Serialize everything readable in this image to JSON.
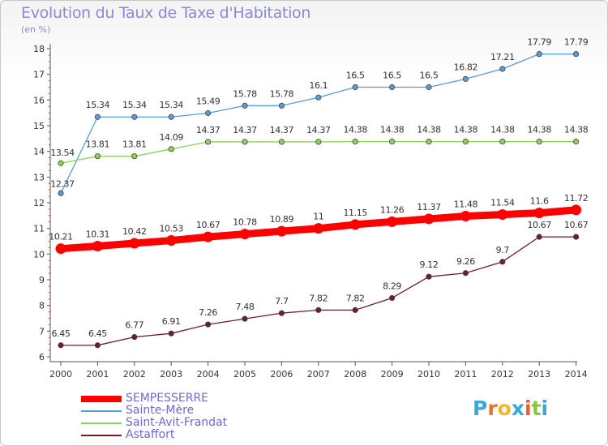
{
  "page": {
    "title": "Evolution du Taux de Taxe d'Habitation",
    "subtitle": "(en %)"
  },
  "logo": {
    "text": "Proxiti",
    "letters": [
      "P",
      "r",
      "o",
      "x",
      "i",
      "t",
      "i"
    ],
    "colors": [
      "#3aa8d8",
      "#e8762a",
      "#f0b82a",
      "#3aa8d8",
      "#f05a30",
      "#8cc63f",
      "#3aa8d8"
    ]
  },
  "chart_data": {
    "type": "line",
    "title": "Evolution du Taux de Taxe d'Habitation",
    "ylabel": "(en %)",
    "xlabel": "",
    "x": [
      "2000",
      "2001",
      "2002",
      "2003",
      "2004",
      "2005",
      "2006",
      "2007",
      "2008",
      "2009",
      "2010",
      "2011",
      "2012",
      "2013",
      "2014"
    ],
    "ylim": [
      6,
      18
    ],
    "yticks": [
      "6",
      "7",
      "8",
      "9",
      "10",
      "11",
      "12",
      "13",
      "14",
      "15",
      "16",
      "17",
      "18"
    ],
    "grid": false,
    "legend_position": "bottom-left",
    "series": [
      {
        "name": "SEMPESSERRE",
        "color": "#ff0000",
        "values": [
          10.21,
          10.31,
          10.42,
          10.53,
          10.67,
          10.78,
          10.89,
          11,
          11.15,
          11.26,
          11.37,
          11.48,
          11.54,
          11.6,
          11.72
        ],
        "labels": [
          "10.21",
          "10.31",
          "10.42",
          "10.53",
          "10.67",
          "10.78",
          "10.89",
          "11",
          "11.15",
          "11.26",
          "11.37",
          "11.48",
          "11.54",
          "11.6",
          "11.72"
        ]
      },
      {
        "name": "Sainte-Mère",
        "color": "#5b9bd5",
        "values": [
          12.37,
          15.34,
          15.34,
          15.34,
          15.49,
          15.78,
          15.78,
          16.1,
          16.5,
          16.5,
          16.5,
          16.82,
          17.21,
          17.79,
          17.79
        ],
        "labels": [
          "12.37",
          "15.34",
          "15.34",
          "15.34",
          "15.49",
          "15.78",
          "15.78",
          "16.1",
          "16.5",
          "16.5",
          "16.5",
          "16.82",
          "17.21",
          "17.79",
          "17.79"
        ]
      },
      {
        "name": "Saint-Avit-Frandat",
        "color": "#8cd35a",
        "values": [
          13.54,
          13.81,
          13.81,
          14.09,
          14.37,
          14.37,
          14.37,
          14.37,
          14.38,
          14.38,
          14.38,
          14.38,
          14.38,
          14.38,
          14.38
        ],
        "labels": [
          "13.54",
          "13.81",
          "13.81",
          "14.09",
          "14.37",
          "14.37",
          "14.37",
          "14.37",
          "14.38",
          "14.38",
          "14.38",
          "14.38",
          "14.38",
          "14.38",
          "14.38"
        ]
      },
      {
        "name": "Astaffort",
        "color": "#6b1f28",
        "values": [
          6.45,
          6.45,
          6.77,
          6.91,
          7.26,
          7.48,
          7.7,
          7.82,
          7.82,
          8.29,
          9.12,
          9.26,
          9.7,
          10.67,
          10.67
        ],
        "labels": [
          "6.45",
          "6.45",
          "6.77",
          "6.91",
          "7.26",
          "7.48",
          "7.7",
          "7.82",
          "7.82",
          "8.29",
          "9.12",
          "9.26",
          "9.7",
          "10.67",
          "10.67"
        ]
      }
    ]
  }
}
